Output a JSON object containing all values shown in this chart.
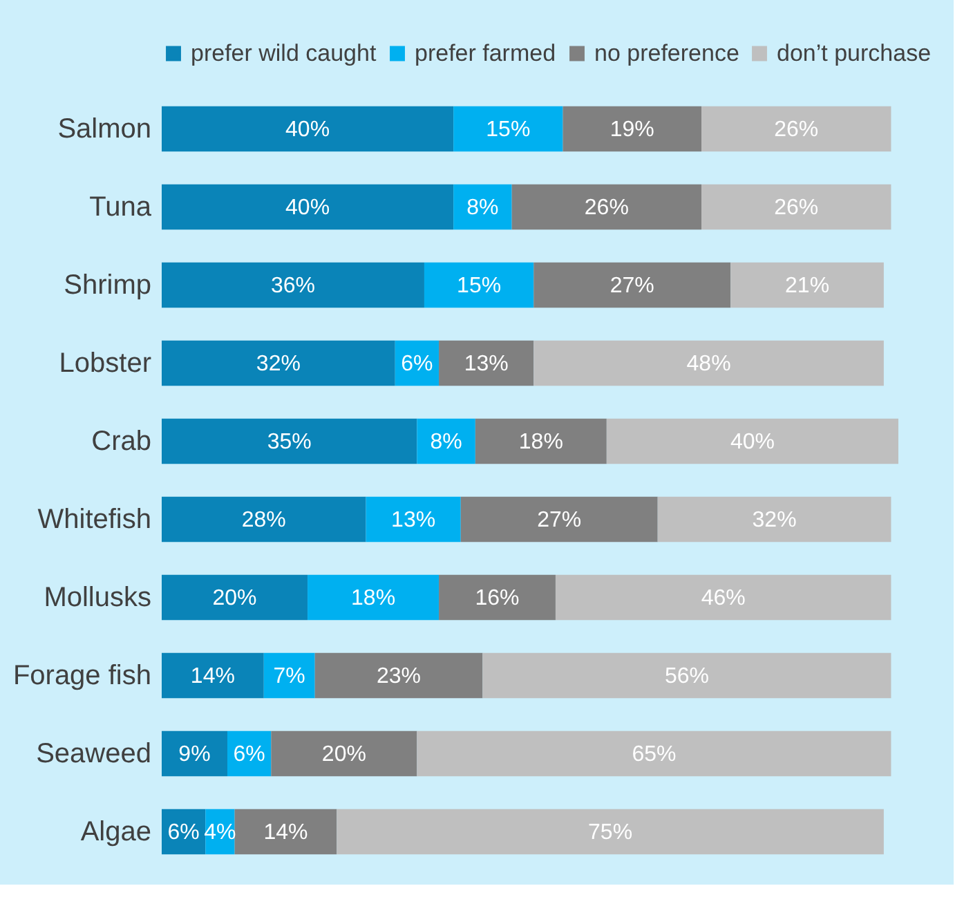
{
  "chart_data": {
    "type": "bar",
    "orientation": "horizontal",
    "stacked": true,
    "legend": "top",
    "tick_labels": "y",
    "grid": false,
    "categories": [
      "Salmon",
      "Tuna",
      "Shrimp",
      "Lobster",
      "Crab",
      "Whitefish",
      "Mollusks",
      "Forage fish",
      "Seaweed",
      "Algae"
    ],
    "series": [
      {
        "name": "prefer wild caught",
        "color": "#0a84b8",
        "values": [
          40,
          40,
          36,
          32,
          35,
          28,
          20,
          14,
          9,
          6
        ],
        "value_labels": [
          "40%",
          "40%",
          "36%",
          "32%",
          "35%",
          "28%",
          "20%",
          "14%",
          "9%",
          "6%"
        ]
      },
      {
        "name": "prefer farmed",
        "color": "#00b0f0",
        "values": [
          15,
          8,
          15,
          6,
          8,
          13,
          18,
          7,
          6,
          4
        ],
        "value_labels": [
          "15%",
          "8%",
          "15%",
          "6%",
          "8%",
          "13%",
          "18%",
          "7%",
          "6%",
          "4%"
        ]
      },
      {
        "name": "no preference",
        "color": "#808080",
        "values": [
          19,
          26,
          27,
          13,
          18,
          27,
          16,
          23,
          20,
          14
        ],
        "value_labels": [
          "19%",
          "26%",
          "27%",
          "13%",
          "18%",
          "27%",
          "16%",
          "23%",
          "20%",
          "14%"
        ]
      },
      {
        "name": "don’t purchase",
        "color": "#bfbfbf",
        "values": [
          26,
          26,
          21,
          48,
          40,
          32,
          46,
          56,
          65,
          75
        ],
        "value_labels": [
          "26%",
          "26%",
          "21%",
          "48%",
          "40%",
          "32%",
          "46%",
          "56%",
          "65%",
          "75%"
        ]
      }
    ]
  }
}
